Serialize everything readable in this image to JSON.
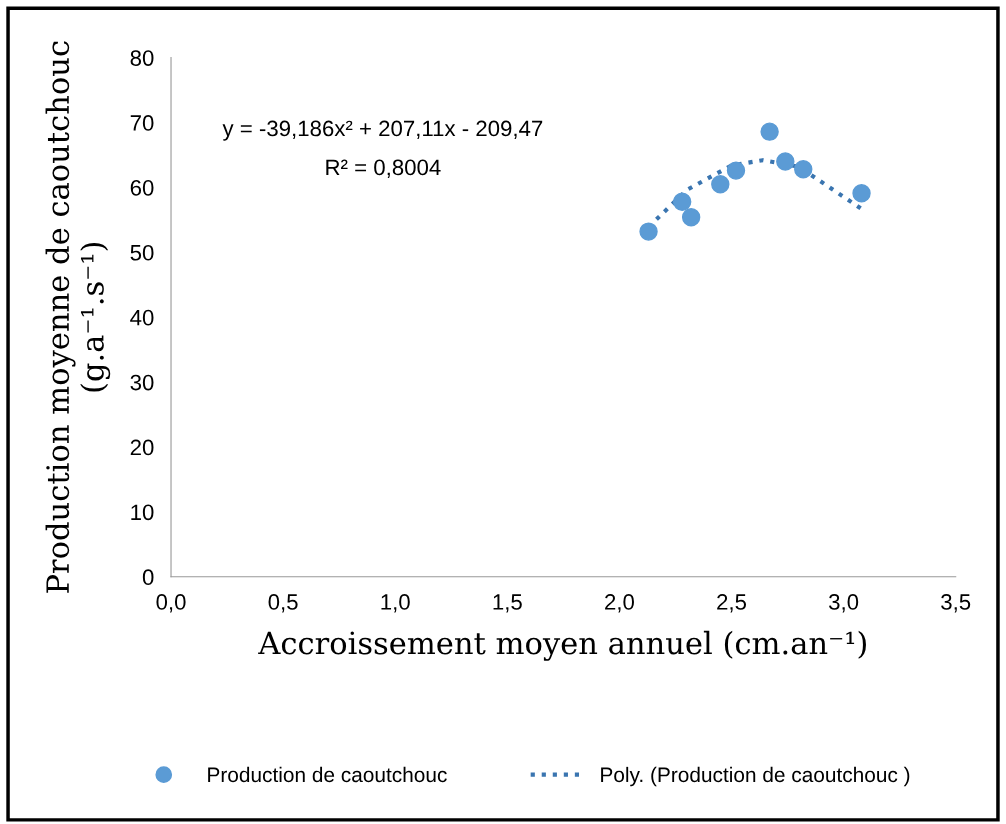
{
  "chart_data": {
    "type": "scatter",
    "xlabel": "Accroissement moyen annuel (cm.an⁻¹)",
    "ylabel": "Production moyenne de caoutchouc\n(g.a⁻¹.s⁻¹)",
    "series": [
      {
        "name": "Production de caoutchouc",
        "color": "#5b9bd5",
        "marker": "circle",
        "x": [
          2.13,
          2.28,
          2.32,
          2.45,
          2.52,
          2.67,
          2.74,
          2.82,
          3.08
        ],
        "values": [
          53.2,
          57.8,
          55.4,
          60.5,
          62.6,
          68.6,
          64.0,
          62.8,
          59.1
        ]
      },
      {
        "name": "Poly. (Production de caoutchouc )",
        "type": "line",
        "color": "#3a75b0",
        "line_style": "dotted",
        "marker": "none",
        "x": [
          2.13,
          2.3,
          2.5,
          2.64,
          2.8,
          3.08
        ],
        "values": [
          53.9,
          59.6,
          63.4,
          64.2,
          63.2,
          56.7
        ]
      }
    ],
    "annotations": [
      "y = -39,186x² + 207,11x - 209,47",
      "R² = 0,8004"
    ],
    "xlim": [
      0,
      3.5
    ],
    "xticks": [
      {
        "value": 0,
        "label": "0,0"
      },
      {
        "value": 0.5,
        "label": "0,5"
      },
      {
        "value": 1,
        "label": "1,0"
      },
      {
        "value": 1.5,
        "label": "1,5"
      },
      {
        "value": 2,
        "label": "2,0"
      },
      {
        "value": 2.5,
        "label": "2,5"
      },
      {
        "value": 3,
        "label": "3,0"
      },
      {
        "value": 3.5,
        "label": "3,5"
      }
    ],
    "ylim": [
      0,
      80
    ],
    "yticks": [
      0,
      10,
      20,
      30,
      40,
      50,
      60,
      70,
      80
    ],
    "grid": false,
    "legend": "bottom"
  }
}
